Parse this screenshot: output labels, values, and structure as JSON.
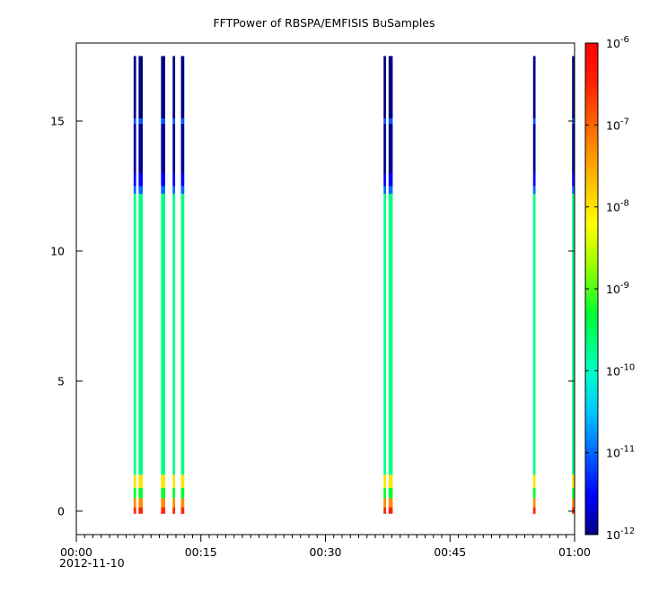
{
  "chart_data": {
    "type": "heatmap",
    "title": "FFTPower of RBSPA/EMFISIS  BuSamples",
    "x_axis": {
      "range": [
        "00:00",
        "01:00"
      ],
      "major_ticks": [
        "00:00",
        "00:15",
        "00:30",
        "00:45",
        "01:00"
      ],
      "minor_tick_minutes": 1,
      "date_label": "2012-11-10"
    },
    "y_axis": {
      "range": [
        -0.9,
        18
      ],
      "ticks": [
        0,
        5,
        10,
        15
      ],
      "tick_labels": [
        "0",
        "5",
        "10",
        "15"
      ]
    },
    "colorbar": {
      "scale": "log",
      "range": [
        1e-12,
        1e-06
      ],
      "tick_values": [
        1e-12,
        1e-11,
        1e-10,
        1e-09,
        1e-08,
        1e-07,
        1e-06
      ],
      "tick_labels": [
        {
          "base": "10",
          "exp": "-12"
        },
        {
          "base": "10",
          "exp": "-11"
        },
        {
          "base": "10",
          "exp": "-10"
        },
        {
          "base": "10",
          "exp": "-9"
        },
        {
          "base": "10",
          "exp": "-8"
        },
        {
          "base": "10",
          "exp": "-7"
        },
        {
          "base": "10",
          "exp": "-6"
        }
      ]
    },
    "bursts": [
      {
        "start_min": 6.9,
        "end_min": 7.2
      },
      {
        "start_min": 7.5,
        "end_min": 8.0
      },
      {
        "start_min": 10.2,
        "end_min": 10.7
      },
      {
        "start_min": 11.6,
        "end_min": 11.9
      },
      {
        "start_min": 12.6,
        "end_min": 13.0
      },
      {
        "start_min": 37.0,
        "end_min": 37.3
      },
      {
        "start_min": 37.6,
        "end_min": 38.1
      },
      {
        "start_min": 55.0,
        "end_min": 55.3
      },
      {
        "start_min": 59.7,
        "end_min": 60.0
      }
    ],
    "spectrum_profile": [
      {
        "y_from": -0.1,
        "y_to": 0.15,
        "power": 3e-07
      },
      {
        "y_from": 0.15,
        "y_to": 0.5,
        "power": 5e-08
      },
      {
        "y_from": 0.5,
        "y_to": 0.9,
        "power": 5e-10
      },
      {
        "y_from": 0.9,
        "y_to": 1.4,
        "power": 1e-08
      },
      {
        "y_from": 1.4,
        "y_to": 12.2,
        "power": 2e-10
      },
      {
        "y_from": 12.2,
        "y_to": 12.5,
        "power": 1e-11
      },
      {
        "y_from": 12.5,
        "y_to": 13.0,
        "power": 3e-12
      },
      {
        "y_from": 13.0,
        "y_to": 14.9,
        "power": 1.2e-12
      },
      {
        "y_from": 14.9,
        "y_to": 15.1,
        "power": 8e-12
      },
      {
        "y_from": 15.1,
        "y_to": 17.5,
        "power": 1e-12
      }
    ],
    "grid": false,
    "legend": "colorbar-right"
  }
}
